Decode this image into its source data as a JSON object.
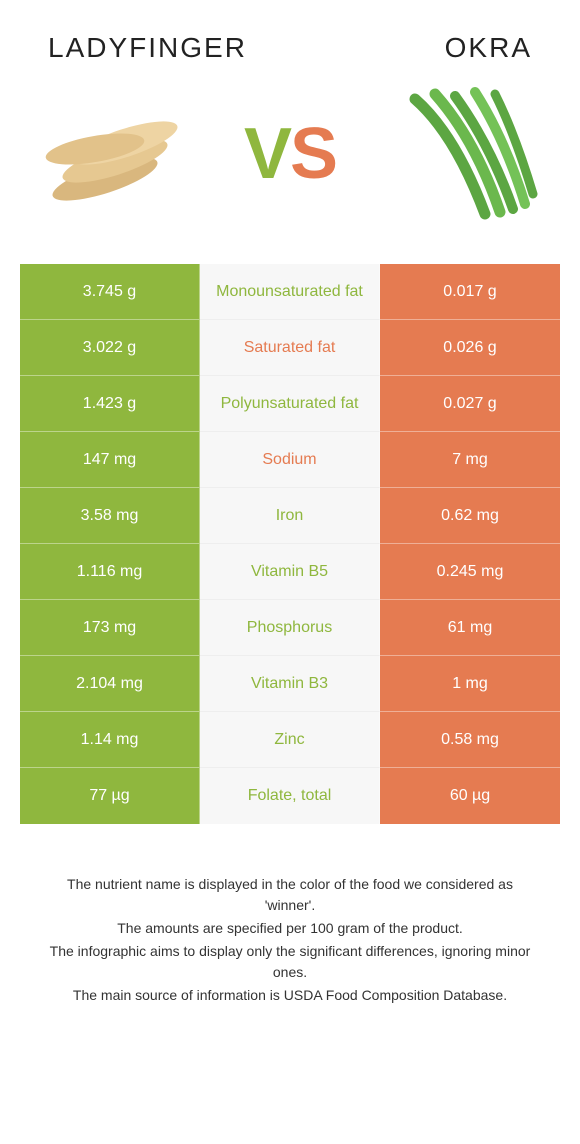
{
  "colors": {
    "left": "#8fb73e",
    "right": "#e57b51",
    "mid_bg": "#f7f7f7"
  },
  "foods": {
    "left": {
      "title": "Ladyfinger"
    },
    "right": {
      "title": "Okra"
    }
  },
  "vs": {
    "v": "V",
    "s": "S"
  },
  "rows": [
    {
      "left": "3.745 g",
      "label": "Monounsaturated fat",
      "right": "0.017 g",
      "winner": "left"
    },
    {
      "left": "3.022 g",
      "label": "Saturated fat",
      "right": "0.026 g",
      "winner": "right"
    },
    {
      "left": "1.423 g",
      "label": "Polyunsaturated fat",
      "right": "0.027 g",
      "winner": "left"
    },
    {
      "left": "147 mg",
      "label": "Sodium",
      "right": "7 mg",
      "winner": "right"
    },
    {
      "left": "3.58 mg",
      "label": "Iron",
      "right": "0.62 mg",
      "winner": "left"
    },
    {
      "left": "1.116 mg",
      "label": "Vitamin B5",
      "right": "0.245 mg",
      "winner": "left"
    },
    {
      "left": "173 mg",
      "label": "Phosphorus",
      "right": "61 mg",
      "winner": "left"
    },
    {
      "left": "2.104 mg",
      "label": "Vitamin B3",
      "right": "1 mg",
      "winner": "left"
    },
    {
      "left": "1.14 mg",
      "label": "Zinc",
      "right": "0.58 mg",
      "winner": "left"
    },
    {
      "left": "77 µg",
      "label": "Folate, total",
      "right": "60 µg",
      "winner": "left"
    }
  ],
  "footer": {
    "line1": "The nutrient name is displayed in the color of the food we considered as 'winner'.",
    "line2": "The amounts are specified per 100 gram of the product.",
    "line3": "The infographic aims to display only the significant differences, ignoring minor ones.",
    "line4": "The main source of information is USDA Food Composition Database."
  }
}
